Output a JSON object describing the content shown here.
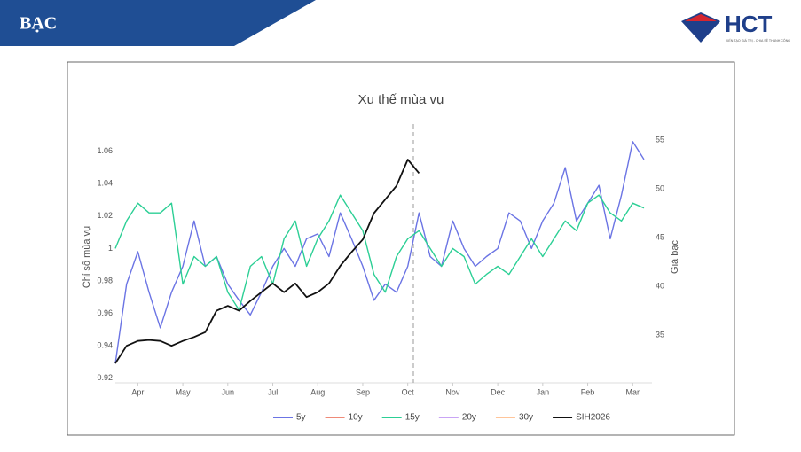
{
  "slide": {
    "title": "BẠC",
    "logo": "HCT",
    "tagline": "KIẾN TẠO GIÁ TRỊ - CHIA SẺ THÀNH CÔNG"
  },
  "chart_data": {
    "type": "line",
    "title": "Xu thế mùa vụ",
    "y_label": "Chỉ số mùa vụ",
    "y2_label": "Giá bạc",
    "categories": [
      null,
      null,
      "Apr",
      null,
      null,
      null,
      "May",
      null,
      null,
      null,
      "Jun",
      null,
      null,
      null,
      "Jul",
      null,
      null,
      null,
      "Aug",
      null,
      null,
      null,
      "Sep",
      null,
      null,
      null,
      "Oct",
      null,
      null,
      null,
      "Nov",
      null,
      null,
      null,
      "Dec",
      null,
      null,
      null,
      "Jan",
      null,
      null,
      null,
      "Feb",
      null,
      null,
      null,
      "Mar",
      null
    ],
    "ylim": [
      0.917,
      1.067
    ],
    "yticks": [
      0.92,
      0.94,
      0.96,
      0.98,
      1,
      1.02,
      1.04,
      1.06
    ],
    "y2lim": [
      30.1,
      55
    ],
    "y2ticks": [
      35,
      40,
      45,
      50,
      55
    ],
    "grid": false,
    "legend": "bottom",
    "series": [
      {
        "name": "5y",
        "color": "#6b74e4",
        "values": [
          0.929,
          0.978,
          0.998,
          0.973,
          0.951,
          0.973,
          0.989,
          1.017,
          0.989,
          0.995,
          0.978,
          0.968,
          0.959,
          0.973,
          0.989,
          1.0,
          0.989,
          1.006,
          1.009,
          0.995,
          1.022,
          1.006,
          0.989,
          0.968,
          0.978,
          0.973,
          0.989,
          1.022,
          0.995,
          0.989,
          1.017,
          1.0,
          0.989,
          0.995,
          1.0,
          1.022,
          1.017,
          1.0,
          1.017,
          1.028,
          1.05,
          1.017,
          1.028,
          1.039,
          1.006,
          1.033,
          1.066,
          1.055
        ]
      },
      {
        "name": "10y",
        "color": "#ef8a78",
        "values": [
          null,
          null,
          null,
          null,
          null,
          null,
          null,
          null,
          null,
          null,
          null,
          null,
          null,
          null,
          null,
          null,
          null,
          null,
          null,
          null,
          null,
          null,
          null,
          null,
          null,
          null,
          null,
          null,
          null,
          null,
          null,
          null,
          null,
          null,
          null,
          null,
          null,
          null,
          null,
          null,
          null,
          null,
          null,
          null,
          null,
          null,
          null,
          null
        ]
      },
      {
        "name": "15y",
        "color": "#2ccf95",
        "values": [
          1.0,
          1.017,
          1.028,
          1.022,
          1.022,
          1.028,
          0.978,
          0.995,
          0.989,
          0.995,
          0.973,
          0.962,
          0.989,
          0.995,
          0.978,
          1.006,
          1.017,
          0.989,
          1.006,
          1.017,
          1.033,
          1.022,
          1.011,
          0.984,
          0.973,
          0.995,
          1.006,
          1.011,
          1.0,
          0.989,
          1.0,
          0.995,
          0.978,
          0.984,
          0.989,
          0.984,
          0.995,
          1.006,
          0.995,
          1.006,
          1.017,
          1.011,
          1.028,
          1.033,
          1.022,
          1.017,
          1.028,
          1.025
        ]
      },
      {
        "name": "20y",
        "color": "#c9a4f5",
        "values": [
          null,
          null,
          null,
          null,
          null,
          null,
          null,
          null,
          null,
          null,
          null,
          null,
          null,
          null,
          null,
          null,
          null,
          null,
          null,
          null,
          null,
          null,
          null,
          null,
          null,
          null,
          null,
          null,
          null,
          null,
          null,
          null,
          null,
          null,
          null,
          null,
          null,
          null,
          null,
          null,
          null,
          null,
          null,
          null,
          null,
          null,
          null,
          null
        ]
      },
      {
        "name": "30y",
        "color": "#ffc59a",
        "values": [
          null,
          null,
          null,
          null,
          null,
          null,
          null,
          null,
          null,
          null,
          null,
          null,
          null,
          null,
          null,
          null,
          null,
          null,
          null,
          null,
          null,
          null,
          null,
          null,
          null,
          null,
          null,
          null,
          null,
          null,
          null,
          null,
          null,
          null,
          null,
          null,
          null,
          null,
          null,
          null,
          null,
          null,
          null,
          null,
          null,
          null,
          null,
          null
        ]
      },
      {
        "name": "SIH2026",
        "color": "#111111",
        "axis": "y2",
        "values": [
          32.1,
          33.9,
          34.4,
          34.5,
          34.4,
          33.9,
          34.4,
          34.8,
          35.3,
          37.5,
          38.0,
          37.5,
          38.5,
          39.4,
          40.3,
          39.4,
          40.3,
          38.9,
          39.4,
          40.3,
          42.1,
          43.5,
          44.8,
          47.5,
          48.9,
          50.3,
          53.0,
          51.6,
          null,
          null,
          null,
          null,
          null,
          null,
          null,
          null,
          null,
          null,
          null,
          null,
          null,
          null,
          null,
          null,
          null,
          null,
          null,
          null
        ]
      }
    ]
  }
}
